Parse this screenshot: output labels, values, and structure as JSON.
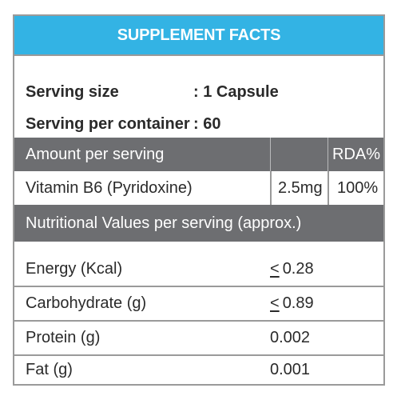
{
  "title": "SUPPLEMENT FACTS",
  "serving": {
    "size_label": "Serving size",
    "size_value": ": 1 Capsule",
    "per_container_label": "Serving per container",
    "per_container_value": ": 60"
  },
  "amount_table": {
    "header_label": "Amount per serving",
    "header_rda": "RDA%",
    "rows": [
      {
        "name": "Vitamin B6 (Pyridoxine)",
        "amount": "2.5mg",
        "rda": "100%"
      }
    ]
  },
  "nutrition": {
    "header": "Nutritional Values per serving (approx.)",
    "rows": [
      {
        "name": "Energy (Kcal)",
        "prefix": "<",
        "amount": "0.28"
      },
      {
        "name": "Carbohydrate (g)",
        "prefix": "<",
        "amount": "0.89"
      },
      {
        "name": "Protein (g)",
        "prefix": "",
        "amount": "0.002"
      },
      {
        "name": "Fat (g)",
        "prefix": "",
        "amount": "0.001"
      }
    ]
  },
  "colors": {
    "title_bar": "#33b3e4",
    "header_bar": "#6d6e71",
    "border": "#9a9a9a",
    "text": "#2a2a2a"
  }
}
